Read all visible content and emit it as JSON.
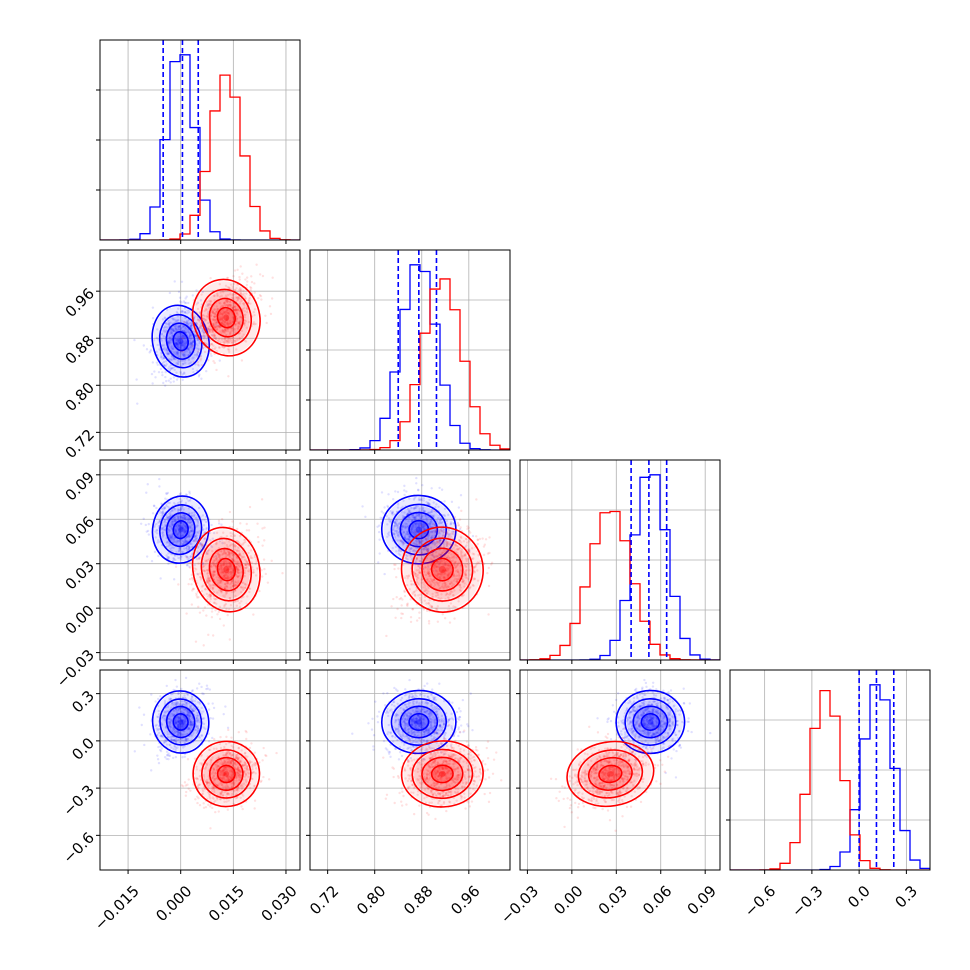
{
  "chart_data": {
    "type": "corner",
    "n_params": 4,
    "colors": {
      "a": "#0000ff",
      "b": "#ff0000",
      "grid": "#b0b0b0"
    },
    "grid": true,
    "series": [
      {
        "color": "#0000ff",
        "mean": [
          0.0,
          0.875,
          0.053,
          0.12
        ],
        "std": [
          0.0038,
          0.03,
          0.011,
          0.095
        ],
        "corr": [
          [
            1,
            0.3,
            -0.25,
            0.2
          ],
          [
            0.3,
            1,
            -0.1,
            0.05
          ],
          [
            -0.25,
            -0.1,
            1,
            0.05
          ],
          [
            0.2,
            0.05,
            0.05,
            1
          ]
        ],
        "quantiles": [
          [
            -0.005,
            0.0005,
            0.005
          ],
          [
            0.84,
            0.875,
            0.905
          ],
          [
            0.04,
            0.052,
            0.064
          ],
          [
            0.0,
            0.11,
            0.22
          ]
        ]
      },
      {
        "color": "#ff0000",
        "mean": [
          0.013,
          0.915,
          0.026,
          -0.21
        ],
        "std": [
          0.0045,
          0.033,
          0.014,
          0.1
        ],
        "corr": [
          [
            1,
            0.45,
            0.3,
            0.25
          ],
          [
            0.45,
            1,
            0.3,
            0.1
          ],
          [
            0.3,
            0.3,
            1,
            0.35
          ],
          [
            0.25,
            0.1,
            0.35,
            1
          ]
        ]
      }
    ],
    "axes": [
      {
        "range": [
          -0.023,
          0.034
        ],
        "ticks": [
          -0.015,
          0.0,
          0.015,
          0.03
        ],
        "tick_labels": [
          "−0.015",
          "0.000",
          "0.015",
          "0.030"
        ]
      },
      {
        "range": [
          0.69,
          1.03
        ],
        "ticks": [
          0.72,
          0.8,
          0.88,
          0.96
        ],
        "tick_labels": [
          "0.72",
          "0.80",
          "0.88",
          "0.96"
        ]
      },
      {
        "range": [
          -0.035,
          0.1
        ],
        "ticks": [
          -0.03,
          0.0,
          0.03,
          0.06,
          0.09
        ],
        "tick_labels": [
          "−0.03",
          "0.00",
          "0.03",
          "0.06",
          "0.09"
        ]
      },
      {
        "range": [
          -0.82,
          0.45
        ],
        "ticks": [
          -0.6,
          -0.3,
          0.0,
          0.3
        ],
        "tick_labels": [
          "−0.6",
          "−0.3",
          "0.0",
          "0.3"
        ]
      }
    ]
  }
}
